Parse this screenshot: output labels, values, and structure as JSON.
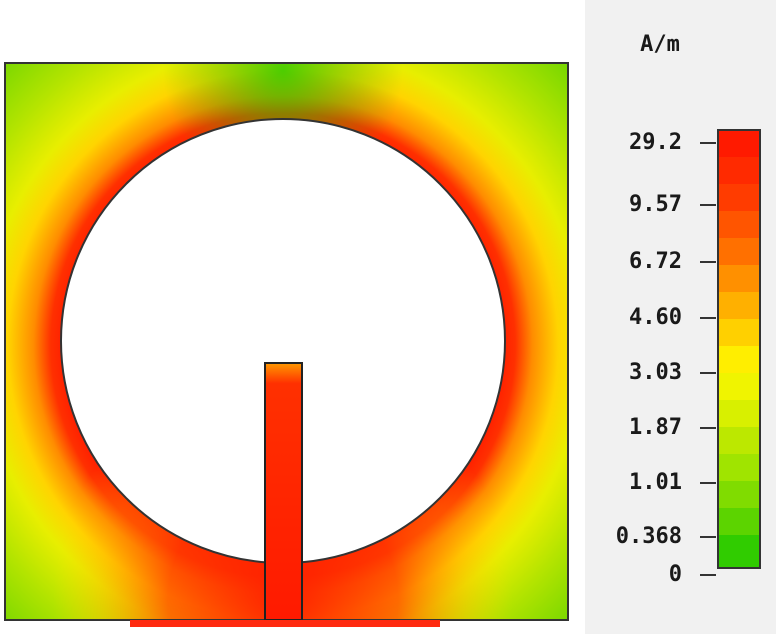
{
  "legend": {
    "unit": "A/m",
    "labels": [
      "29.2",
      "9.57",
      "6.72",
      "4.60",
      "3.03",
      "1.87",
      "1.01",
      "0.368",
      "0"
    ]
  }
}
